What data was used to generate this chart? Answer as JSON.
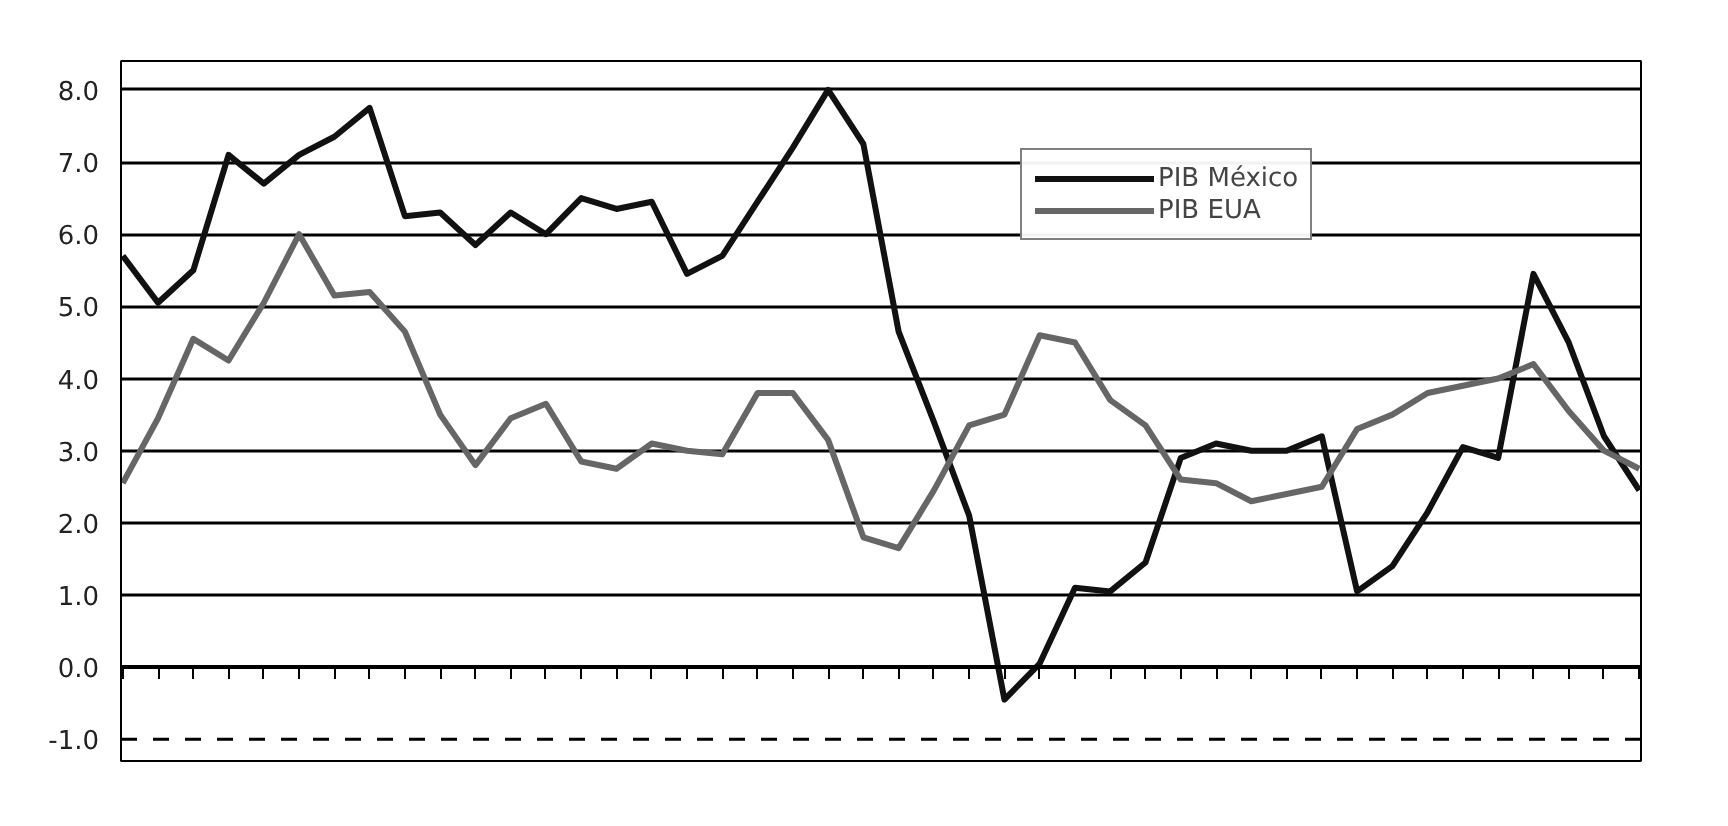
{
  "chart_data": {
    "type": "line",
    "categories": [
      null,
      null,
      null,
      null,
      null,
      null,
      null,
      null,
      null,
      null,
      null,
      null,
      null,
      null,
      null,
      null,
      null,
      null,
      null,
      null,
      null,
      null,
      null,
      null,
      null,
      null,
      null,
      null,
      null,
      null,
      null,
      null,
      null,
      null,
      null,
      null,
      null,
      null,
      null,
      null,
      null,
      null,
      null,
      null
    ],
    "series": [
      {
        "name": "PIB México",
        "color": "#111111",
        "values": [
          5.7,
          5.05,
          5.5,
          7.1,
          6.7,
          7.1,
          7.35,
          7.75,
          6.25,
          6.3,
          5.85,
          6.3,
          6.0,
          6.5,
          6.35,
          6.45,
          5.45,
          5.7,
          6.45,
          7.2,
          8.0,
          7.25,
          4.65,
          3.4,
          2.1,
          -0.45,
          0.05,
          1.1,
          1.05,
          1.45,
          2.9,
          3.1,
          3.0,
          3.0,
          3.2,
          1.05,
          1.4,
          2.15,
          3.05,
          2.9,
          5.45,
          4.5,
          3.2,
          2.45
        ]
      },
      {
        "name": "PIB EUA",
        "color": "#666666",
        "values": [
          2.55,
          3.45,
          4.55,
          4.25,
          5.05,
          6.0,
          5.15,
          5.2,
          4.65,
          3.5,
          2.8,
          3.45,
          3.65,
          2.85,
          2.75,
          3.1,
          3.0,
          2.95,
          3.8,
          3.8,
          3.15,
          1.8,
          1.65,
          2.45,
          3.35,
          3.5,
          4.6,
          4.5,
          3.7,
          3.35,
          2.6,
          2.55,
          2.3,
          2.4,
          2.5,
          3.3,
          3.5,
          3.8,
          3.9,
          4.0,
          4.2,
          3.55,
          3.0,
          2.75
        ]
      }
    ],
    "ylim": [
      -1.3,
      8.4
    ],
    "yticks": [
      {
        "value": -1,
        "label": "-1.0"
      },
      {
        "value": 0,
        "label": "0.0"
      },
      {
        "value": 1,
        "label": "1.0"
      },
      {
        "value": 2,
        "label": "2.0"
      },
      {
        "value": 3,
        "label": "3.0"
      },
      {
        "value": 4,
        "label": "4.0"
      },
      {
        "value": 5,
        "label": "5.0"
      },
      {
        "value": 6,
        "label": "6.0"
      },
      {
        "value": 7,
        "label": "7.0"
      },
      {
        "value": 8,
        "label": "8.0"
      }
    ],
    "grid": "y",
    "legend": "top",
    "line_style": "solid",
    "ref_lines": [
      {
        "axis": "y",
        "value": -1,
        "line_style": "dashed",
        "color": "#000000"
      }
    ]
  }
}
